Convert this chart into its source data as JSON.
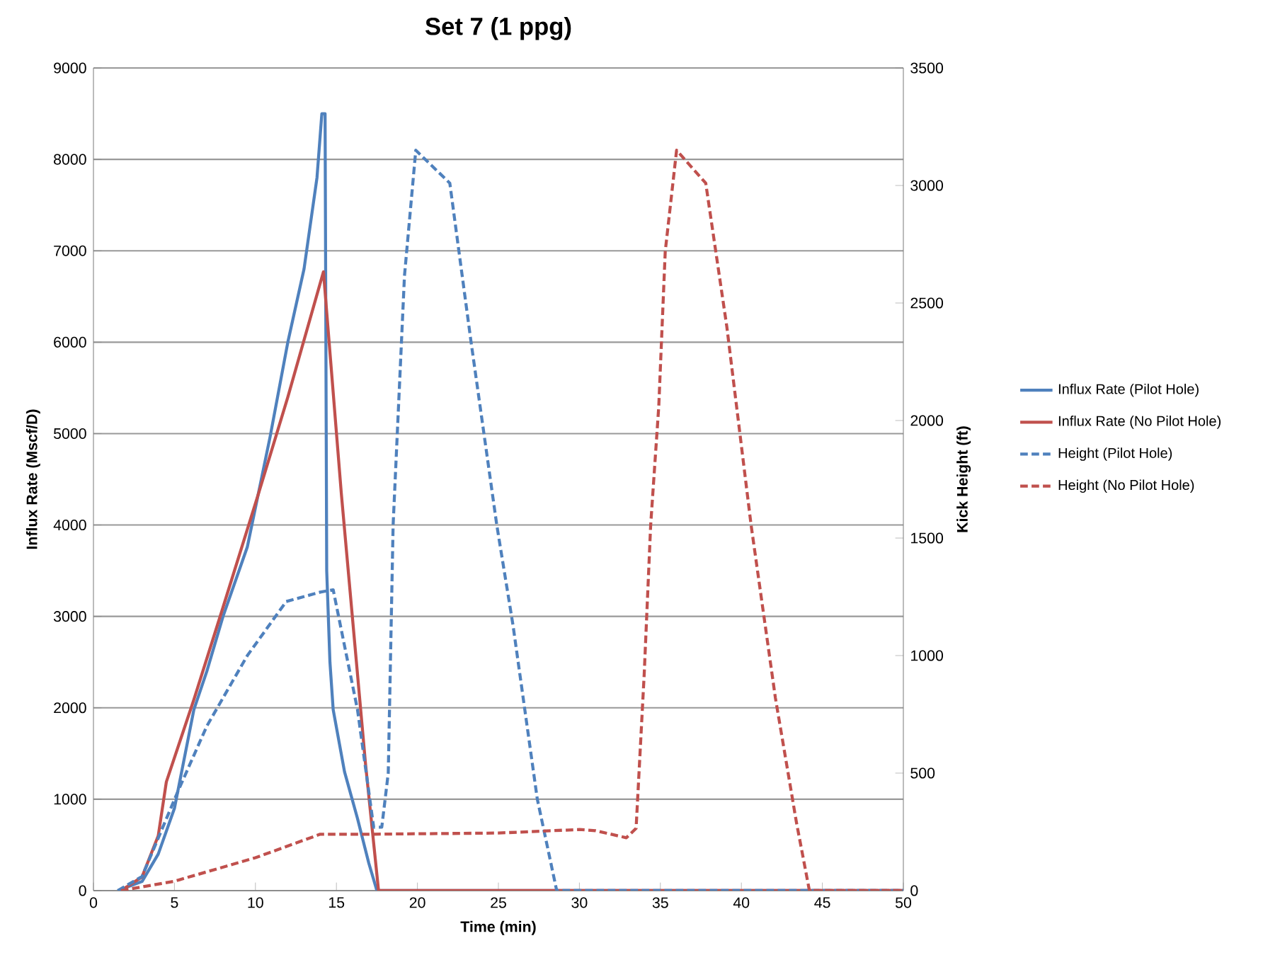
{
  "chart_data": {
    "type": "line",
    "title": "Set 7 (1 ppg)",
    "xlabel": "Time (min)",
    "ylabel": "Influx Rate (Mscf/D)",
    "y2label": "Kick Height (ft)",
    "xlim": [
      0,
      50
    ],
    "xticks": [
      0,
      5,
      10,
      15,
      20,
      25,
      30,
      35,
      40,
      45,
      50
    ],
    "ylim": [
      0,
      9000
    ],
    "yticks": [
      0,
      1000,
      2000,
      3000,
      4000,
      5000,
      6000,
      7000,
      8000,
      9000
    ],
    "y2lim": [
      0,
      3500
    ],
    "y2ticks": [
      0,
      500,
      1000,
      1500,
      2000,
      2500,
      3000,
      3500
    ],
    "grid": "y",
    "legend": "right",
    "marker": "none",
    "series": [
      {
        "name": "Influx Rate (Pilot Hole)",
        "color": "#4f81bd",
        "line_style": "solid",
        "x": [
          1.5,
          3,
          4,
          5,
          6.2,
          7,
          8,
          9.5,
          10.9,
          12,
          13,
          13.8,
          14.1,
          14.3,
          14.4,
          14.6,
          14.8,
          15.5,
          16.3,
          17,
          17.5,
          50
        ],
        "values": [
          0,
          100,
          400,
          900,
          1980,
          2400,
          3000,
          3760,
          4960,
          6000,
          6800,
          7800,
          8500,
          8500,
          3500,
          2500,
          1980,
          1300,
          790,
          300,
          0,
          0
        ]
      },
      {
        "name": "Influx Rate (No Pilot Hole)",
        "color": "#c0504d",
        "line_style": "solid",
        "x": [
          1.7,
          3,
          4,
          4.5,
          6.2,
          8,
          10.2,
          12,
          14.2,
          15.3,
          16.8,
          17.6,
          50
        ],
        "values": [
          0,
          150,
          600,
          1190,
          2090,
          3100,
          4350,
          5400,
          6770,
          4350,
          1380,
          0,
          0
        ]
      },
      {
        "name": "Height (Pilot Hole)",
        "color": "#4f81bd",
        "line_style": "dashed",
        "axis": "y2",
        "x": [
          1.5,
          3,
          5.2,
          7,
          9.5,
          11.9,
          14,
          14.8,
          16.3,
          17.3,
          17.8,
          18.2,
          18.5,
          19.2,
          19.9,
          22.0,
          23.3,
          24.9,
          25.9,
          27.4,
          28.6,
          50
        ],
        "values": [
          0,
          60,
          420,
          700,
          1000,
          1230,
          1270,
          1280,
          770,
          270,
          270,
          500,
          1555,
          2615,
          3150,
          3010,
          2340,
          1555,
          1130,
          390,
          0,
          0
        ]
      },
      {
        "name": "Height (No Pilot Hole)",
        "color": "#c0504d",
        "line_style": "dashed",
        "axis": "y2",
        "x": [
          1.7,
          5,
          10,
          14,
          17,
          25,
          30,
          31,
          32.9,
          33.5,
          34.0,
          34.4,
          34.9,
          35.3,
          36.0,
          37.8,
          39.1,
          40.6,
          42.1,
          43.4,
          44.2,
          50
        ],
        "values": [
          0,
          40,
          140,
          240,
          240,
          245,
          260,
          255,
          225,
          265,
          920,
          1555,
          2060,
          2720,
          3150,
          3010,
          2400,
          1555,
          820,
          290,
          0,
          0
        ]
      }
    ]
  }
}
